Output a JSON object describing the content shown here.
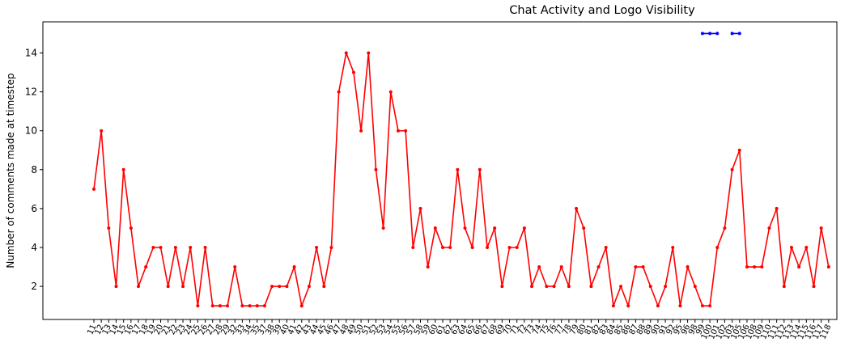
{
  "chart_data": {
    "type": "line",
    "title": "Chat Activity and Logo Visibility",
    "ylabel": "Number of comments made at timestep",
    "categories": [
      "11",
      "12",
      "13",
      "14",
      "15",
      "16",
      "17",
      "18",
      "19",
      "20",
      "21",
      "22",
      "23",
      "24",
      "25",
      "26",
      "27",
      "28",
      "29",
      "32",
      "33",
      "34",
      "35",
      "37",
      "38",
      "39",
      "40",
      "41",
      "42",
      "43",
      "44",
      "45",
      "46",
      "47",
      "48",
      "49",
      "50",
      "51",
      "52",
      "53",
      "54",
      "55",
      "56",
      "57",
      "58",
      "59",
      "60",
      "61",
      "62",
      "63",
      "64",
      "65",
      "66",
      "67",
      "68",
      "69",
      "70",
      "71",
      "72",
      "73",
      "74",
      "75",
      "76",
      "77",
      "78",
      "79",
      "80",
      "81",
      "82",
      "83",
      "84",
      "85",
      "86",
      "87",
      "88",
      "89",
      "90",
      "91",
      "92",
      "95",
      "96",
      "98",
      "99",
      "100",
      "101",
      "102",
      "103",
      "105",
      "106",
      "108",
      "109",
      "110",
      "111",
      "112",
      "113",
      "114",
      "115",
      "116",
      "117",
      "118"
    ],
    "series": [
      {
        "color": "#ff0000",
        "values": [
          7,
          10,
          5,
          2,
          8,
          5,
          2,
          3,
          4,
          4,
          2,
          4,
          2,
          4,
          1,
          4,
          1,
          1,
          1,
          3,
          1,
          1,
          1,
          1,
          2,
          2,
          2,
          3,
          1,
          2,
          4,
          2,
          4,
          12,
          14,
          13,
          10,
          14,
          8,
          5,
          12,
          10,
          10,
          4,
          6,
          3,
          5,
          4,
          4,
          8,
          5,
          4,
          8,
          4,
          5,
          2,
          4,
          4,
          5,
          2,
          3,
          2,
          2,
          3,
          2,
          6,
          5,
          2,
          3,
          4,
          1,
          2,
          1,
          3,
          3,
          2,
          1,
          2,
          4,
          1,
          3,
          2,
          1,
          1,
          4,
          5,
          8,
          9,
          3,
          3,
          3,
          5,
          6,
          2,
          4,
          3,
          4,
          2,
          5,
          3
        ]
      },
      {
        "color": "#0000ff",
        "values": [
          null,
          null,
          null,
          null,
          null,
          null,
          null,
          null,
          null,
          null,
          null,
          null,
          null,
          null,
          null,
          null,
          null,
          null,
          null,
          null,
          null,
          null,
          null,
          null,
          null,
          null,
          null,
          null,
          null,
          null,
          null,
          null,
          null,
          null,
          null,
          null,
          null,
          null,
          null,
          null,
          null,
          null,
          null,
          null,
          null,
          null,
          null,
          null,
          null,
          null,
          null,
          null,
          null,
          null,
          null,
          null,
          null,
          null,
          null,
          null,
          null,
          null,
          null,
          null,
          null,
          null,
          null,
          null,
          null,
          null,
          null,
          null,
          null,
          null,
          null,
          null,
          null,
          null,
          null,
          null,
          null,
          null,
          15,
          15,
          15,
          null,
          15,
          15,
          null,
          null,
          null,
          null,
          null,
          null,
          null,
          null,
          null,
          null,
          null,
          null
        ]
      }
    ],
    "ylim": [
      0.3,
      15.6
    ],
    "yticks": [
      2,
      4,
      6,
      8,
      10,
      12,
      14
    ]
  }
}
